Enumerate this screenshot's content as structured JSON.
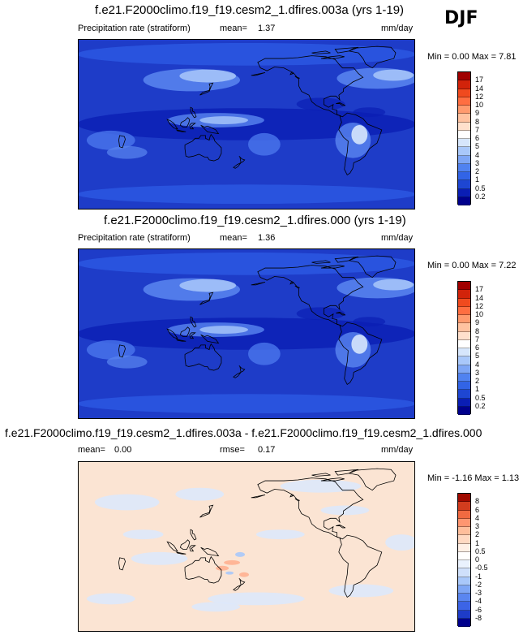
{
  "season": "DJF",
  "colors": {
    "abs_scale": [
      "#00008c",
      "#0a1eb4",
      "#1e46d2",
      "#3264e6",
      "#5082f0",
      "#7ea6f5",
      "#a9c8fa",
      "#d6e6fc",
      "#ffffff",
      "#ffe0cc",
      "#ffc2a0",
      "#ff9a6e",
      "#ff6e41",
      "#f04a1e",
      "#d2230a",
      "#a00000",
      "#780000"
    ],
    "diff_scale": [
      "#00008c",
      "#1e3cc8",
      "#3c64e6",
      "#5a86f0",
      "#7ea6f5",
      "#a9c8fa",
      "#cfe0fb",
      "#eaf2fd",
      "#ffffff",
      "#fff0e6",
      "#ffd9c2",
      "#ffbe9b",
      "#ff9670",
      "#f06a41",
      "#d23c1e",
      "#a00a00",
      "#780000"
    ]
  },
  "chart_data": [
    {
      "type": "heatmap",
      "title": "f.e21.F2000climo.f19_f19.cesm2_1.dfires.003a (yrs 1-19)",
      "left_label": "Precipitation rate (stratiform)",
      "stat_label": "mean=",
      "stat_value": "1.37",
      "units": "mm/day",
      "min_label": "Min =",
      "min": "0.00",
      "max_label": "Max =",
      "max": "7.81",
      "colorbar_levels": [
        "0.2",
        "0.5",
        "1",
        "2",
        "3",
        "4",
        "5",
        "6",
        "7",
        "8",
        "9",
        "10",
        "12",
        "14",
        "17"
      ]
    },
    {
      "type": "heatmap",
      "title": "f.e21.F2000climo.f19_f19.cesm2_1.dfires.000 (yrs 1-19)",
      "left_label": "Precipitation rate (stratiform)",
      "stat_label": "mean=",
      "stat_value": "1.36",
      "units": "mm/day",
      "min_label": "Min =",
      "min": "0.00",
      "max_label": "Max =",
      "max": "7.22",
      "colorbar_levels": [
        "0.2",
        "0.5",
        "1",
        "2",
        "3",
        "4",
        "5",
        "6",
        "7",
        "8",
        "9",
        "10",
        "12",
        "14",
        "17"
      ]
    },
    {
      "type": "heatmap",
      "title": "f.e21.F2000climo.f19_f19.cesm2_1.dfires.003a - f.e21.F2000climo.f19_f19.cesm2_1.dfires.000",
      "left_label": "mean=",
      "left_value": "0.00",
      "stat_label": "rmse=",
      "stat_value": "0.17",
      "units": "mm/day",
      "min_label": "Min =",
      "min": "-1.16",
      "max_label": "Max =",
      "max": "1.13",
      "colorbar_levels": [
        "-8",
        "-6",
        "-4",
        "-3",
        "-2",
        "-1",
        "-0.5",
        "0",
        "0.5",
        "1",
        "2",
        "3",
        "4",
        "6",
        "8"
      ]
    }
  ]
}
